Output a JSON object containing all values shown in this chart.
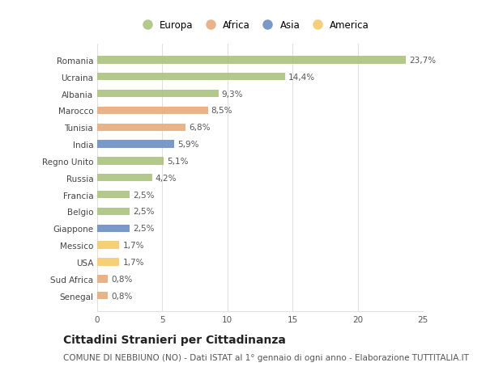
{
  "countries": [
    "Romania",
    "Ucraina",
    "Albania",
    "Marocco",
    "Tunisia",
    "India",
    "Regno Unito",
    "Russia",
    "Francia",
    "Belgio",
    "Giappone",
    "Messico",
    "USA",
    "Sud Africa",
    "Senegal"
  ],
  "values": [
    23.7,
    14.4,
    9.3,
    8.5,
    6.8,
    5.9,
    5.1,
    4.2,
    2.5,
    2.5,
    2.5,
    1.7,
    1.7,
    0.8,
    0.8
  ],
  "labels": [
    "23,7%",
    "14,4%",
    "9,3%",
    "8,5%",
    "6,8%",
    "5,9%",
    "5,1%",
    "4,2%",
    "2,5%",
    "2,5%",
    "2,5%",
    "1,7%",
    "1,7%",
    "0,8%",
    "0,8%"
  ],
  "continents": [
    "Europa",
    "Europa",
    "Europa",
    "Africa",
    "Africa",
    "Asia",
    "Europa",
    "Europa",
    "Europa",
    "Europa",
    "Asia",
    "America",
    "America",
    "Africa",
    "Africa"
  ],
  "colors": {
    "Europa": "#aac47e",
    "Africa": "#e8aa7a",
    "Asia": "#6b8ec0",
    "America": "#f5ca6a"
  },
  "legend_order": [
    "Europa",
    "Africa",
    "Asia",
    "America"
  ],
  "xlim": [
    0,
    25
  ],
  "xticks": [
    0,
    5,
    10,
    15,
    20,
    25
  ],
  "background_color": "#ffffff",
  "grid_color": "#e0e0e0",
  "title": "Cittadini Stranieri per Cittadinanza",
  "subtitle": "COMUNE DI NEBBIUNO (NO) - Dati ISTAT al 1° gennaio di ogni anno - Elaborazione TUTTITALIA.IT",
  "bar_height": 0.45,
  "title_fontsize": 10,
  "subtitle_fontsize": 7.5,
  "label_fontsize": 7.5,
  "tick_fontsize": 7.5,
  "legend_fontsize": 8.5
}
